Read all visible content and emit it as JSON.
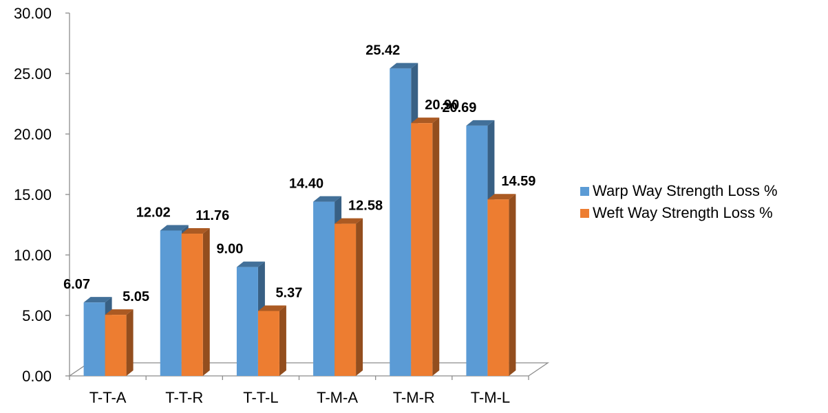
{
  "chart_data": {
    "type": "bar",
    "categories": [
      "T-T-A",
      "T-T-R",
      "T-T-L",
      "T-M-A",
      "T-M-R",
      "T-M-L"
    ],
    "series": [
      {
        "name": "Warp Way Strength Loss %",
        "values": [
          6.07,
          12.02,
          9.0,
          14.4,
          25.42,
          20.69
        ],
        "labels": [
          "6.07",
          "12.02",
          "9.00",
          "14.40",
          "25.42",
          "20.69"
        ],
        "color": "#5B9BD5"
      },
      {
        "name": "Weft Way Strength Loss %",
        "values": [
          5.05,
          11.76,
          5.37,
          12.58,
          20.9,
          14.59
        ],
        "labels": [
          "5.05",
          "11.76",
          "5.37",
          "12.58",
          "20.90",
          "14.59"
        ],
        "color": "#ED7D31"
      }
    ],
    "y_ticks": [
      "0.00",
      "5.00",
      "10.00",
      "15.00",
      "20.00",
      "25.00",
      "30.00"
    ],
    "ylim": [
      0,
      30
    ],
    "title": "",
    "xlabel": "",
    "ylabel": "",
    "legend_position": "right",
    "grid": false,
    "style": "3d-clustered-column"
  }
}
